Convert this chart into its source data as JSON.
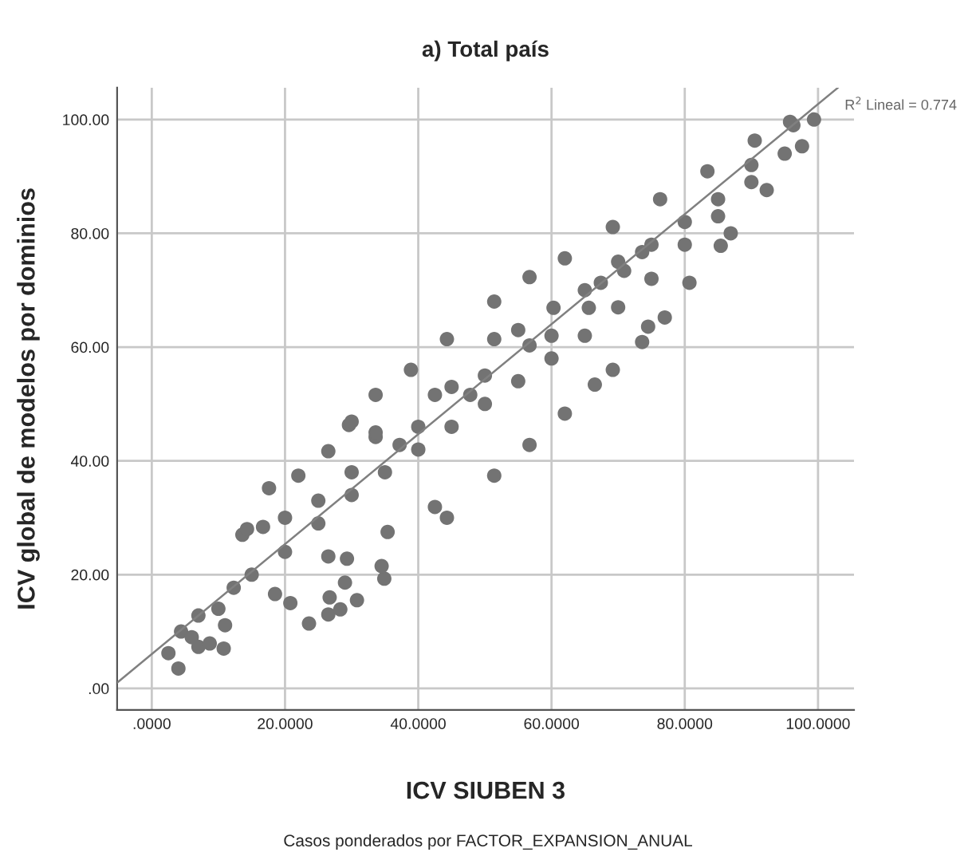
{
  "chart_data": {
    "type": "scatter",
    "title": "a) Total país",
    "xlabel": "ICV SIUBEN 3",
    "ylabel": "ICV global de modelos por dominios",
    "xlim": [
      -5.2,
      105.4
    ],
    "ylim": [
      -3.8,
      105.6
    ],
    "xticks": [
      {
        "value": 0,
        "label": ".0000"
      },
      {
        "value": 20,
        "label": "20.0000"
      },
      {
        "value": 40,
        "label": "40.0000"
      },
      {
        "value": 60,
        "label": "60.0000"
      },
      {
        "value": 80,
        "label": "80.0000"
      },
      {
        "value": 100,
        "label": "100.0000"
      }
    ],
    "yticks": [
      {
        "value": 0,
        "label": ".00"
      },
      {
        "value": 20,
        "label": "20.00"
      },
      {
        "value": 40,
        "label": "40.00"
      },
      {
        "value": 60,
        "label": "60.00"
      },
      {
        "value": 80,
        "label": "80.00"
      },
      {
        "value": 100,
        "label": "100.00"
      }
    ],
    "grid": true,
    "marker": "circle",
    "series": [
      {
        "color": "#737373",
        "x": [
          2.5,
          4,
          4.4,
          6,
          7,
          8.7,
          10.8,
          11,
          13.6,
          14.3,
          16.7,
          20.8,
          23.6,
          26.5,
          26.7,
          28.3,
          29.3,
          29,
          30.8,
          34.9,
          34.5,
          29.6,
          33.6,
          44.3,
          66.5,
          73.6,
          77,
          85.4,
          96.3,
          99.4,
          7,
          12.3,
          17.6,
          22,
          26.5,
          30,
          33.6,
          38.9,
          44.3,
          51.4,
          56.7,
          62,
          69.2,
          76.3,
          83.4,
          90.5,
          95.8,
          33.6,
          42.5,
          51.4,
          60.3,
          67.4,
          73.6,
          37.2,
          47.8,
          56.7,
          65.6,
          70.9,
          18.5,
          26.5,
          35.4,
          42.5,
          51.4,
          56.7,
          62,
          69.2,
          74.5,
          80.7,
          86.9,
          92.3,
          97.6,
          10,
          15,
          20,
          25,
          30,
          35,
          40,
          45,
          50,
          55,
          60,
          65,
          70,
          75,
          80,
          85,
          90,
          95,
          40,
          50,
          60,
          70,
          80,
          20,
          25,
          30,
          45,
          55,
          65,
          75,
          85,
          90
        ],
        "values": [
          6.2,
          3.5,
          10,
          9,
          7.3,
          7.9,
          7,
          11.1,
          27,
          28,
          28.4,
          15,
          11.4,
          13,
          16,
          13.9,
          22.8,
          18.6,
          15.5,
          19.3,
          21.5,
          46.3,
          44.2,
          30,
          53.4,
          60.9,
          65.2,
          77.8,
          99,
          100,
          12.8,
          17.7,
          35.2,
          37.4,
          41.7,
          46.9,
          51.6,
          56,
          61.4,
          68,
          72.3,
          75.6,
          81.1,
          86,
          90.9,
          96.3,
          99.6,
          45,
          51.6,
          61.4,
          66.9,
          71.3,
          76.7,
          42.8,
          51.6,
          60.3,
          66.9,
          73.4,
          16.6,
          23.2,
          27.5,
          31.9,
          37.4,
          42.8,
          48.3,
          56,
          63.6,
          71.3,
          80,
          87.6,
          95.3,
          14,
          20,
          24,
          29,
          34,
          38,
          42,
          46,
          50,
          54,
          58,
          62,
          67,
          72,
          78,
          83,
          89,
          94,
          46,
          55,
          62,
          75,
          82,
          30,
          33,
          38,
          53,
          63,
          70,
          78,
          86,
          92
        ]
      },
      {
        "type": "line",
        "color": "#808080",
        "marker": "none",
        "x": [
          -5.2,
          103
        ],
        "values": [
          1,
          105.6
        ]
      }
    ],
    "annotations": [
      {
        "text": "R$^{2}$ Lineal = 0.774",
        "x": 103,
        "y": 105.6
      },
      "Casos ponderados por FACTOR_EXPANSION_ANUAL"
    ]
  }
}
